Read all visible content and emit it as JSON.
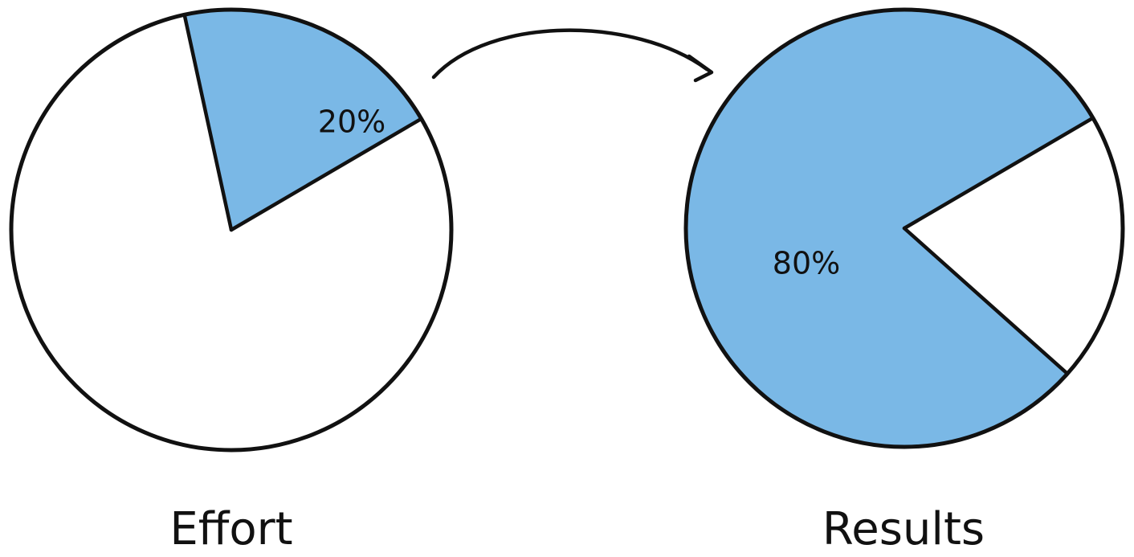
{
  "colors": {
    "highlight": "#7ab8e6",
    "background": "#ffffff",
    "ink": "#111111"
  },
  "chart_data": [
    {
      "type": "pie",
      "caption": "Effort",
      "slices": [
        {
          "label": "20%",
          "value": 20,
          "highlighted": true
        },
        {
          "label": "",
          "value": 80,
          "highlighted": false
        }
      ]
    },
    {
      "type": "pie",
      "caption": "Results",
      "slices": [
        {
          "label": "80%",
          "value": 80,
          "highlighted": true
        },
        {
          "label": "",
          "value": 20,
          "highlighted": false
        }
      ]
    }
  ],
  "arrow": {
    "from": "Effort",
    "to": "Results"
  }
}
